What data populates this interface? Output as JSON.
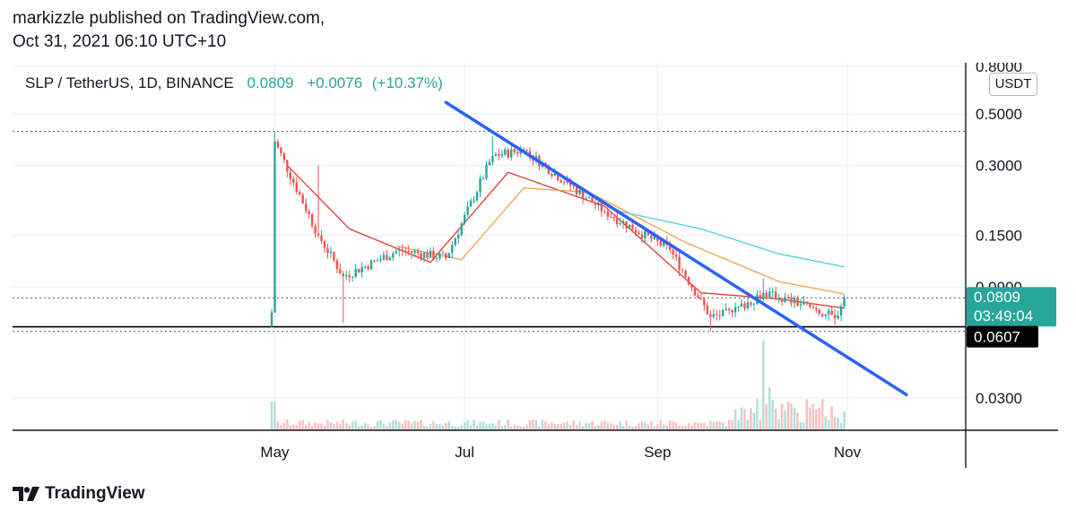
{
  "header": {
    "published_line": "markizzle published on TradingView.com,",
    "date_line": "Oct 31, 2021 06:10 UTC+10"
  },
  "legend": {
    "symbol": "SLP / TetherUS, 1D, BINANCE",
    "last": "0.0809",
    "change": "+0.0076",
    "change_pct": "(+10.37%)"
  },
  "price_scale": {
    "currency": "USDT",
    "ticks": [
      "0.8000",
      "0.5000",
      "0.3000",
      "0.1500",
      "0.0900",
      "0.0300"
    ],
    "last_price_label": "0.0809",
    "countdown_label": "03:49:04",
    "support_label": "0.0607"
  },
  "time_scale": {
    "ticks": [
      "May",
      "Jul",
      "Sep",
      "Nov"
    ]
  },
  "footer": {
    "brand": "TradingView"
  },
  "colors": {
    "up": "#26a69a",
    "down": "#ef5350",
    "trendline": "#2962ff",
    "ma_fast": "#e53935",
    "ma_mid": "#f5a04a",
    "ma_slow": "#4dd0e1",
    "support": "#000000"
  },
  "chart_data": {
    "type": "candlestick",
    "title": "SLP / TetherUS, 1D, BINANCE",
    "scale": "log",
    "ylim": [
      0.025,
      0.85
    ],
    "x_range": [
      "2021-03-24",
      "2021-11-30"
    ],
    "key_points": [
      {
        "date": "2021-04-30",
        "close": 0.07
      },
      {
        "date": "2021-05-01",
        "high": 0.42,
        "close": 0.38
      },
      {
        "date": "2021-05-15",
        "high": 0.3,
        "close": 0.15
      },
      {
        "date": "2021-05-23",
        "low": 0.063,
        "close": 0.1
      },
      {
        "date": "2021-06-10",
        "close": 0.13
      },
      {
        "date": "2021-06-25",
        "close": 0.12
      },
      {
        "date": "2021-07-10",
        "high": 0.4,
        "close": 0.33
      },
      {
        "date": "2021-07-20",
        "close": 0.35
      },
      {
        "date": "2021-08-15",
        "close": 0.19
      },
      {
        "date": "2021-09-05",
        "close": 0.13
      },
      {
        "date": "2021-09-18",
        "low": 0.058,
        "close": 0.067
      },
      {
        "date": "2021-09-25",
        "close": 0.07
      },
      {
        "date": "2021-10-05",
        "high": 0.098,
        "close": 0.085
      },
      {
        "date": "2021-10-20",
        "close": 0.074
      },
      {
        "date": "2021-10-28",
        "low": 0.062,
        "close": 0.066
      },
      {
        "date": "2021-10-31",
        "close": 0.0809
      }
    ],
    "trendline": {
      "from": {
        "date": "2021-06-25",
        "price": 0.56
      },
      "to": {
        "date": "2021-11-20",
        "price": 0.031
      }
    },
    "horizontal_lines": [
      {
        "price": 0.42,
        "style": "dotted"
      },
      {
        "price": 0.0809,
        "style": "dotted"
      },
      {
        "price": 0.0607,
        "style": "solid"
      },
      {
        "price": 0.058,
        "style": "dotted"
      }
    ],
    "moving_averages": [
      {
        "color": "#e53935",
        "points": [
          {
            "date": "2021-05-05",
            "value": 0.3
          },
          {
            "date": "2021-05-25",
            "value": 0.16
          },
          {
            "date": "2021-06-20",
            "value": 0.115
          },
          {
            "date": "2021-07-15",
            "value": 0.28
          },
          {
            "date": "2021-08-15",
            "value": 0.2
          },
          {
            "date": "2021-09-15",
            "value": 0.085
          },
          {
            "date": "2021-10-10",
            "value": 0.08
          },
          {
            "date": "2021-10-31",
            "value": 0.073
          }
        ]
      },
      {
        "color": "#f5a04a",
        "points": [
          {
            "date": "2021-06-09",
            "value": 0.135
          },
          {
            "date": "2021-06-30",
            "value": 0.118
          },
          {
            "date": "2021-07-20",
            "value": 0.24
          },
          {
            "date": "2021-08-10",
            "value": 0.23
          },
          {
            "date": "2021-09-10",
            "value": 0.14
          },
          {
            "date": "2021-10-10",
            "value": 0.095
          },
          {
            "date": "2021-10-31",
            "value": 0.084
          }
        ]
      },
      {
        "color": "#4dd0e1",
        "points": [
          {
            "date": "2021-08-20",
            "value": 0.19
          },
          {
            "date": "2021-09-15",
            "value": 0.16
          },
          {
            "date": "2021-10-10",
            "value": 0.125
          },
          {
            "date": "2021-10-31",
            "value": 0.11
          }
        ]
      }
    ]
  }
}
